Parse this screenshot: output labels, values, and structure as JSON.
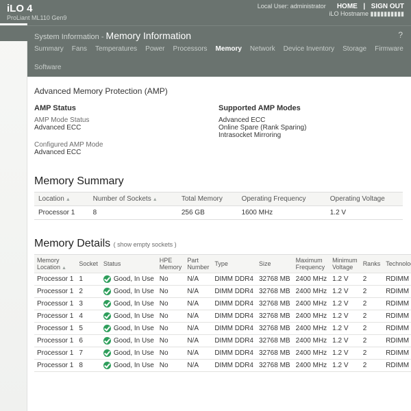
{
  "topbar": {
    "brand": "iLO 4",
    "model": "ProLiant ML110 Gen9",
    "user_line": "Local User: administrator",
    "host_line": "iLO Hostname ▮▮▮▮▮▮▮▮▮▮",
    "home": "HOME",
    "signout": "SIGN OUT"
  },
  "subheader": {
    "crumb_prefix": "System Information - ",
    "crumb_main": "Memory Information",
    "help": "?"
  },
  "tabs": [
    {
      "label": "Summary",
      "active": false
    },
    {
      "label": "Fans",
      "active": false
    },
    {
      "label": "Temperatures",
      "active": false
    },
    {
      "label": "Power",
      "active": false
    },
    {
      "label": "Processors",
      "active": false
    },
    {
      "label": "Memory",
      "active": true
    },
    {
      "label": "Network",
      "active": false
    },
    {
      "label": "Device Inventory",
      "active": false
    },
    {
      "label": "Storage",
      "active": false
    },
    {
      "label": "Firmware",
      "active": false
    },
    {
      "label": "Software",
      "active": false
    }
  ],
  "amp": {
    "section_title": "Advanced Memory Protection (AMP)",
    "status_title": "AMP Status",
    "mode_label": "AMP Mode Status",
    "mode_value": "Advanced ECC",
    "config_label": "Configured AMP Mode",
    "config_value": "Advanced ECC",
    "supported_title": "Supported AMP Modes",
    "supported": [
      "Advanced ECC",
      "Online Spare (Rank Sparing)",
      "Intrasocket Mirroring"
    ]
  },
  "summary": {
    "title": "Memory Summary",
    "headers": [
      "Location",
      "Number of Sockets",
      "Total Memory",
      "Operating Frequency",
      "Operating Voltage"
    ],
    "row": [
      "Processor 1",
      "8",
      "256 GB",
      "1600 MHz",
      "1.2 V"
    ]
  },
  "details": {
    "title": "Memory Details",
    "note": "( show empty sockets )",
    "headers": [
      "Memory Location",
      "Socket",
      "Status",
      "HPE Memory",
      "Part Number",
      "Type",
      "Size",
      "Maximum Frequency",
      "Minimum Voltage",
      "Ranks",
      "Technology"
    ],
    "status_text": "Good, In Use",
    "rows": [
      [
        "Processor 1",
        "1",
        "Good, In Use",
        "No",
        "N/A",
        "DIMM DDR4",
        "32768 MB",
        "2400 MHz",
        "1.2 V",
        "2",
        "RDIMM"
      ],
      [
        "Processor 1",
        "2",
        "Good, In Use",
        "No",
        "N/A",
        "DIMM DDR4",
        "32768 MB",
        "2400 MHz",
        "1.2 V",
        "2",
        "RDIMM"
      ],
      [
        "Processor 1",
        "3",
        "Good, In Use",
        "No",
        "N/A",
        "DIMM DDR4",
        "32768 MB",
        "2400 MHz",
        "1.2 V",
        "2",
        "RDIMM"
      ],
      [
        "Processor 1",
        "4",
        "Good, In Use",
        "No",
        "N/A",
        "DIMM DDR4",
        "32768 MB",
        "2400 MHz",
        "1.2 V",
        "2",
        "RDIMM"
      ],
      [
        "Processor 1",
        "5",
        "Good, In Use",
        "No",
        "N/A",
        "DIMM DDR4",
        "32768 MB",
        "2400 MHz",
        "1.2 V",
        "2",
        "RDIMM"
      ],
      [
        "Processor 1",
        "6",
        "Good, In Use",
        "No",
        "N/A",
        "DIMM DDR4",
        "32768 MB",
        "2400 MHz",
        "1.2 V",
        "2",
        "RDIMM"
      ],
      [
        "Processor 1",
        "7",
        "Good, In Use",
        "No",
        "N/A",
        "DIMM DDR4",
        "32768 MB",
        "2400 MHz",
        "1.2 V",
        "2",
        "RDIMM"
      ],
      [
        "Processor 1",
        "8",
        "Good, In Use",
        "No",
        "N/A",
        "DIMM DDR4",
        "32768 MB",
        "2400 MHz",
        "1.2 V",
        "2",
        "RDIMM"
      ]
    ]
  },
  "colors": {
    "header_bg": "#6a736f",
    "ok_green": "#2e9e5b",
    "row_border": "#e2e2e0"
  }
}
